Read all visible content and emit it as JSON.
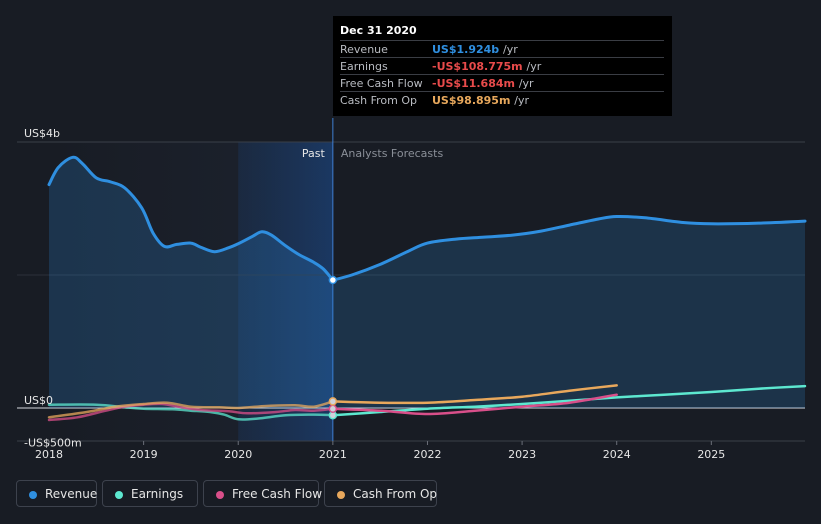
{
  "chart_data": {
    "type": "line",
    "x_ticks": [
      "2018",
      "2019",
      "2020",
      "2021",
      "2022",
      "2023",
      "2024",
      "2025"
    ],
    "y_ticks": [
      {
        "value": 4000,
        "label": "US$4b"
      },
      {
        "value": 0,
        "label": "US$0"
      },
      {
        "value": -500,
        "label": "-US$500m"
      }
    ],
    "ylim": [
      -500,
      4000
    ],
    "xlim": [
      2018.0,
      2025.99
    ],
    "divider_x": 2021.0,
    "past_label": "Past",
    "forecast_label": "Analysts Forecasts",
    "series": [
      {
        "name": "Revenue",
        "color": "#2f8fe0",
        "fill": true,
        "past": [
          [
            2018.0,
            3360
          ],
          [
            2018.1,
            3620
          ],
          [
            2018.25,
            3770
          ],
          [
            2018.35,
            3680
          ],
          [
            2018.5,
            3460
          ],
          [
            2018.65,
            3400
          ],
          [
            2018.8,
            3310
          ],
          [
            2018.98,
            3010
          ],
          [
            2019.1,
            2630
          ],
          [
            2019.22,
            2430
          ],
          [
            2019.35,
            2460
          ],
          [
            2019.5,
            2480
          ],
          [
            2019.6,
            2420
          ],
          [
            2019.75,
            2350
          ],
          [
            2019.9,
            2410
          ],
          [
            2020.0,
            2470
          ],
          [
            2020.15,
            2580
          ],
          [
            2020.25,
            2650
          ],
          [
            2020.35,
            2600
          ],
          [
            2020.5,
            2440
          ],
          [
            2020.65,
            2300
          ],
          [
            2020.8,
            2190
          ],
          [
            2020.9,
            2090
          ],
          [
            2021.0,
            1924
          ]
        ],
        "forecast": [
          [
            2021.0,
            1924
          ],
          [
            2021.2,
            2000
          ],
          [
            2021.5,
            2160
          ],
          [
            2021.8,
            2360
          ],
          [
            2022.0,
            2480
          ],
          [
            2022.3,
            2540
          ],
          [
            2022.6,
            2570
          ],
          [
            2022.9,
            2600
          ],
          [
            2023.2,
            2660
          ],
          [
            2023.5,
            2750
          ],
          [
            2023.8,
            2840
          ],
          [
            2024.0,
            2880
          ],
          [
            2024.3,
            2860
          ],
          [
            2024.7,
            2790
          ],
          [
            2025.0,
            2770
          ],
          [
            2025.5,
            2780
          ],
          [
            2025.99,
            2810
          ]
        ]
      },
      {
        "name": "Earnings",
        "color": "#5de8d0",
        "fill": false,
        "past": [
          [
            2018.0,
            50
          ],
          [
            2018.5,
            50
          ],
          [
            2018.8,
            10
          ],
          [
            2019.0,
            -10
          ],
          [
            2019.3,
            -20
          ],
          [
            2019.5,
            -40
          ],
          [
            2019.7,
            -60
          ],
          [
            2019.85,
            -100
          ],
          [
            2020.0,
            -170
          ],
          [
            2020.2,
            -160
          ],
          [
            2020.5,
            -110
          ],
          [
            2020.8,
            -100
          ],
          [
            2021.0,
            -109
          ]
        ],
        "forecast": [
          [
            2021.0,
            -109
          ],
          [
            2021.5,
            -60
          ],
          [
            2022.0,
            -10
          ],
          [
            2022.5,
            20
          ],
          [
            2023.0,
            60
          ],
          [
            2023.5,
            110
          ],
          [
            2024.0,
            160
          ],
          [
            2024.5,
            200
          ],
          [
            2025.0,
            240
          ],
          [
            2025.5,
            290
          ],
          [
            2025.99,
            330
          ]
        ]
      },
      {
        "name": "Free Cash Flow",
        "color": "#d94f8a",
        "fill": false,
        "past": [
          [
            2018.0,
            -180
          ],
          [
            2018.3,
            -140
          ],
          [
            2018.6,
            -40
          ],
          [
            2018.8,
            20
          ],
          [
            2019.0,
            50
          ],
          [
            2019.2,
            60
          ],
          [
            2019.4,
            10
          ],
          [
            2019.6,
            -30
          ],
          [
            2019.9,
            -50
          ],
          [
            2020.1,
            -80
          ],
          [
            2020.4,
            -60
          ],
          [
            2020.6,
            -30
          ],
          [
            2020.8,
            -40
          ],
          [
            2021.0,
            -12
          ]
        ],
        "forecast": [
          [
            2021.0,
            -12
          ],
          [
            2021.5,
            -40
          ],
          [
            2022.0,
            -90
          ],
          [
            2022.5,
            -40
          ],
          [
            2023.0,
            20
          ],
          [
            2023.5,
            80
          ],
          [
            2024.0,
            200
          ]
        ]
      },
      {
        "name": "Cash From Op",
        "color": "#e8a85c",
        "fill": false,
        "past": [
          [
            2018.0,
            -140
          ],
          [
            2018.4,
            -60
          ],
          [
            2018.7,
            20
          ],
          [
            2019.0,
            60
          ],
          [
            2019.25,
            80
          ],
          [
            2019.5,
            20
          ],
          [
            2019.8,
            10
          ],
          [
            2020.0,
            0
          ],
          [
            2020.3,
            30
          ],
          [
            2020.6,
            40
          ],
          [
            2020.8,
            20
          ],
          [
            2021.0,
            99
          ]
        ],
        "forecast": [
          [
            2021.0,
            99
          ],
          [
            2021.5,
            80
          ],
          [
            2022.0,
            80
          ],
          [
            2022.5,
            120
          ],
          [
            2023.0,
            170
          ],
          [
            2023.5,
            260
          ],
          [
            2024.0,
            340
          ]
        ]
      }
    ]
  },
  "tooltip": {
    "date": "Dec 31 2020",
    "rows": [
      {
        "label": "Revenue",
        "value": "US$1.924b",
        "unit": "/yr",
        "color": "#2f8fe0"
      },
      {
        "label": "Earnings",
        "value": "-US$108.775m",
        "unit": "/yr",
        "color": "#e84b4b"
      },
      {
        "label": "Free Cash Flow",
        "value": "-US$11.684m",
        "unit": "/yr",
        "color": "#e84b4b"
      },
      {
        "label": "Cash From Op",
        "value": "US$98.895m",
        "unit": "/yr",
        "color": "#e8a85c"
      }
    ]
  },
  "legend": [
    {
      "label": "Revenue",
      "color": "#2f8fe0"
    },
    {
      "label": "Earnings",
      "color": "#5de8d0"
    },
    {
      "label": "Free Cash Flow",
      "color": "#d94f8a"
    },
    {
      "label": "Cash From Op",
      "color": "#e8a85c"
    }
  ]
}
